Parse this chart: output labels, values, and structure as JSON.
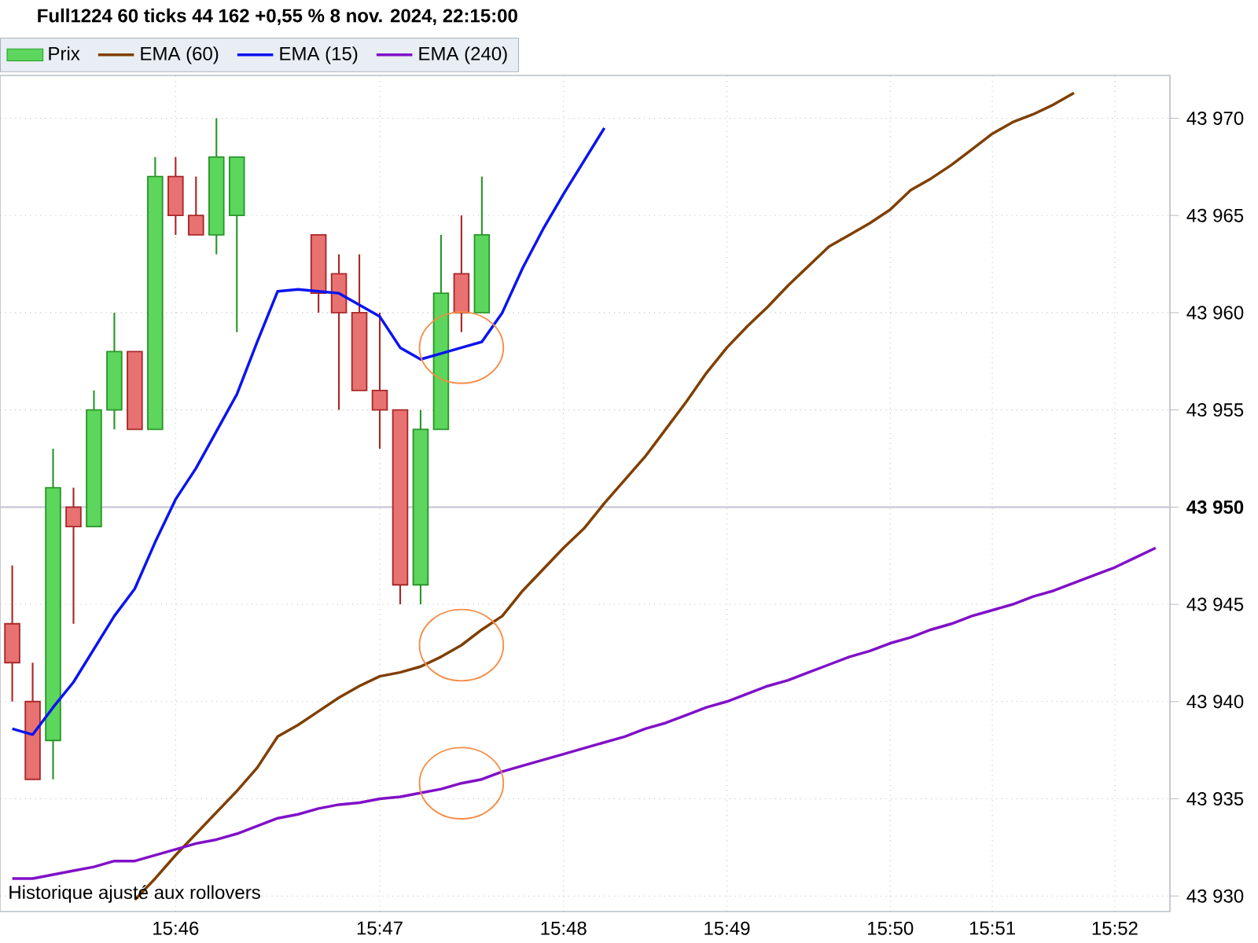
{
  "chart_data": {
    "type": "candlestick",
    "title": "Full1224 60 ticks 44 162 +0,55 % 8 nov. 2024, 22:15:00",
    "annotations": [
      "Historique ajusté aux rollovers"
    ],
    "categories": [
      null,
      null,
      null,
      null,
      null,
      null,
      null,
      null,
      "15:46",
      null,
      null,
      null,
      null,
      null,
      null,
      null,
      null,
      null,
      "15:47",
      null,
      null,
      null,
      null,
      null,
      null,
      null,
      null,
      "15:48",
      null,
      null,
      null,
      null,
      null,
      null,
      null,
      "15:49",
      null,
      null,
      null,
      null,
      null,
      null,
      null,
      "15:50",
      null,
      null,
      null,
      null,
      "15:51",
      null,
      null,
      null,
      null,
      null,
      "15:52",
      null,
      null
    ],
    "ylim": [
      43929.2,
      43972.2
    ],
    "yticks": [
      {
        "value": 43930,
        "label": "43 930"
      },
      {
        "value": 43935,
        "label": "43 935"
      },
      {
        "value": 43940,
        "label": "43 940"
      },
      {
        "value": 43945,
        "label": "43 945"
      },
      {
        "value": 43950,
        "label": "**43 950**"
      },
      {
        "value": 43955,
        "label": "43 955"
      },
      {
        "value": 43960,
        "label": "43 960"
      },
      {
        "value": 43965,
        "label": "43 965"
      },
      {
        "value": 43970,
        "label": "43 970"
      }
    ],
    "grid": true,
    "legend": "top left",
    "line_style": "solid",
    "ref_lines": [
      {
        "axis": "y",
        "value": 43950,
        "color": "#c8c8d8"
      }
    ],
    "series": [
      {
        "name": "Prix",
        "type": "candlestick",
        "ohlc": [
          [
            43944,
            43947,
            43940,
            43942
          ],
          [
            43940,
            43942,
            43936,
            43936
          ],
          [
            43938,
            43953,
            43936,
            43951
          ],
          [
            43950,
            43951,
            43944,
            43949
          ],
          [
            43949,
            43956,
            43949,
            43955
          ],
          [
            43955,
            43960,
            43954,
            43958
          ],
          [
            43958,
            43958,
            43954,
            43954
          ],
          [
            43954,
            43968,
            43954,
            43967
          ],
          [
            43967,
            43968,
            43964,
            43965
          ],
          [
            43965,
            43967,
            43964,
            43964
          ],
          [
            43964,
            43970,
            43963,
            43968
          ],
          [
            43965,
            43968,
            43959,
            43968
          ],
          null,
          null,
          null,
          [
            43964,
            43964,
            43960,
            43961
          ],
          [
            43962,
            43963,
            43955,
            43960
          ],
          [
            43960,
            43963,
            43956,
            43956
          ],
          [
            43956,
            43960,
            43953,
            43955
          ],
          [
            43955,
            43955,
            43945,
            43946
          ],
          [
            43946,
            43955,
            43945,
            43954
          ],
          [
            43954,
            43964,
            43954,
            43961
          ],
          [
            43962,
            43965,
            43959,
            43960
          ],
          [
            43960,
            43967,
            43960,
            43964
          ],
          null,
          null,
          null,
          null,
          null,
          null,
          null,
          null,
          null,
          null,
          null,
          null,
          null,
          null,
          null,
          null,
          null,
          null,
          null,
          null,
          null,
          null,
          null,
          null,
          null,
          null,
          null,
          null,
          null,
          null,
          null,
          null,
          null
        ]
      },
      {
        "name": "EMA (60)",
        "type": "line",
        "color": "#7f3f00",
        "values": [
          null,
          null,
          null,
          null,
          null,
          null,
          43929.8,
          43930.9,
          43932.1,
          43933.2,
          43934.3,
          43935.4,
          43936.6,
          43938.2,
          43938.8,
          43939.5,
          43940.2,
          43940.8,
          43941.3,
          43941.5,
          43941.8,
          43942.3,
          43942.9,
          43943.7,
          43944.4,
          43945.7,
          43946.8,
          43947.9,
          43948.9,
          43950.2,
          43951.4,
          43952.6,
          43954.0,
          43955.4,
          43956.9,
          43958.2,
          43959.3,
          43960.3,
          43961.4,
          43962.4,
          43963.4,
          43964.0,
          43964.6,
          43965.3,
          43966.3,
          43966.9,
          43967.6,
          43968.4,
          43969.2,
          43969.8,
          43970.2,
          43970.7,
          43971.3,
          null,
          null,
          null,
          null
        ]
      },
      {
        "name": "EMA (15)",
        "type": "line",
        "color": "#0a14f0",
        "values": [
          43938.6,
          43938.3,
          43939.7,
          43941.0,
          43942.7,
          43944.4,
          43945.8,
          43948.2,
          43950.4,
          43952.0,
          43953.9,
          43955.8,
          43958.5,
          43961.1,
          43961.2,
          43961.1,
          43961.0,
          43960.4,
          43959.8,
          43958.2,
          43957.6,
          43957.9,
          43958.2,
          43958.5,
          43960.0,
          43962.3,
          43964.3,
          43966.1,
          43967.8,
          43969.5,
          null,
          null,
          null,
          null,
          null,
          null,
          null,
          null,
          null,
          null,
          null,
          null,
          null,
          null,
          null,
          null,
          null,
          null,
          null,
          null,
          null,
          null,
          null,
          null,
          null,
          null,
          null
        ]
      },
      {
        "name": "EMA (240)",
        "type": "line",
        "color": "#8010c8",
        "values": [
          43930.9,
          43930.9,
          43931.1,
          43931.3,
          43931.5,
          43931.8,
          43931.8,
          43932.1,
          43932.4,
          43932.7,
          43932.9,
          43933.2,
          43933.6,
          43934.0,
          43934.2,
          43934.5,
          43934.7,
          43934.8,
          43935.0,
          43935.1,
          43935.3,
          43935.5,
          43935.8,
          43936.0,
          43936.4,
          43936.7,
          43937.0,
          43937.3,
          43937.6,
          43937.9,
          43938.2,
          43938.6,
          43938.9,
          43939.3,
          43939.7,
          43940.0,
          43940.4,
          43940.8,
          43941.1,
          43941.5,
          43941.9,
          43942.3,
          43942.6,
          43943.0,
          43943.3,
          43943.7,
          43944.0,
          43944.4,
          43944.7,
          43945.0,
          43945.4,
          43945.7,
          43946.1,
          43946.5,
          43946.9,
          43947.4,
          43947.9
        ]
      }
    ]
  }
}
